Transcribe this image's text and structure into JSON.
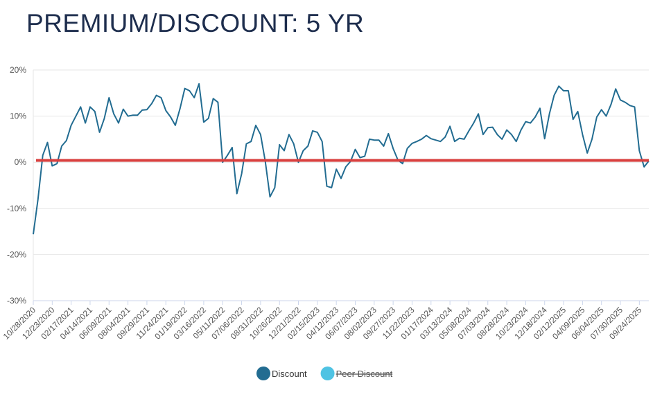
{
  "chart_data": {
    "type": "line",
    "title": "PREMIUM/DISCOUNT: 5 YR",
    "categories": [
      "10/28/2020",
      null,
      null,
      null,
      "12/23/2020",
      null,
      null,
      null,
      "02/17/2021",
      null,
      null,
      null,
      "04/14/2021",
      null,
      null,
      null,
      "06/09/2021",
      null,
      null,
      null,
      "08/04/2021",
      null,
      null,
      null,
      "09/29/2021",
      null,
      null,
      null,
      "11/24/2021",
      null,
      null,
      null,
      "01/19/2022",
      null,
      null,
      null,
      "03/16/2022",
      null,
      null,
      null,
      "05/11/2022",
      null,
      null,
      null,
      "07/06/2022",
      null,
      null,
      null,
      "08/31/2022",
      null,
      null,
      null,
      "10/26/2022",
      null,
      null,
      null,
      "12/21/2022",
      null,
      null,
      null,
      "02/15/2023",
      null,
      null,
      null,
      "04/12/2023",
      null,
      null,
      null,
      "06/07/2023",
      null,
      null,
      null,
      "08/02/2023",
      null,
      null,
      null,
      "09/27/2023",
      null,
      null,
      null,
      "11/22/2023",
      null,
      null,
      null,
      "01/17/2024",
      null,
      null,
      null,
      "03/13/2024",
      null,
      null,
      null,
      "05/08/2024",
      null,
      null,
      null,
      "07/03/2024",
      null,
      null,
      null,
      "08/28/2024",
      null,
      null,
      null,
      "10/23/2024",
      null,
      null,
      null,
      "12/18/2024",
      null,
      null,
      null,
      "02/12/2025",
      null,
      null,
      null,
      "04/09/2025",
      null,
      null,
      null,
      "06/04/2025",
      null,
      null,
      null,
      "07/30/2025",
      null,
      null,
      null,
      "09/24/2025",
      null,
      null
    ],
    "series": [
      {
        "name": "Discount",
        "color": "#226c91",
        "values": [
          -15.6,
          -8,
          1.5,
          4.3,
          -0.8,
          -0.3,
          3.5,
          4.7,
          8,
          10,
          12,
          8.5,
          12,
          11,
          6.5,
          9.5,
          14,
          10.5,
          8.5,
          11.5,
          10,
          10.2,
          10.2,
          11.3,
          11.4,
          12.7,
          14.5,
          14,
          11.2,
          9.8,
          8,
          11.7,
          16,
          15.5,
          14,
          17,
          8.7,
          9.5,
          13.8,
          13,
          0,
          1.5,
          3.2,
          -6.8,
          -2.5,
          4,
          4.5,
          8,
          6,
          0.2,
          -7.5,
          -5.5,
          3.8,
          2.5,
          6,
          4,
          0,
          2.5,
          3.5,
          6.8,
          6.5,
          4.5,
          -5.2,
          -5.5,
          -1.5,
          -3.5,
          -1,
          0.2,
          2.8,
          1,
          1.3,
          5,
          4.8,
          4.8,
          3.5,
          6.2,
          3,
          0.5,
          -0.3,
          3,
          4.1,
          4.5,
          5,
          5.8,
          5.1,
          4.8,
          4.5,
          5.5,
          7.8,
          4.5,
          5.2,
          5,
          6.8,
          8.5,
          10.5,
          6,
          7.5,
          7.6,
          6,
          5,
          7,
          6,
          4.5,
          7,
          8.8,
          8.5,
          9.8,
          11.7,
          5.1,
          10.5,
          14.5,
          16.5,
          15.5,
          15.5,
          9.3,
          11,
          6,
          2,
          5,
          9.8,
          11.4,
          10,
          12.5,
          15.9,
          13.5,
          13,
          12.3,
          12,
          2.5,
          -1,
          0.3
        ]
      },
      {
        "name": "Peer Discount",
        "color": "#4fc3e3",
        "hidden": true
      }
    ],
    "reference_line": {
      "value": 0.4,
      "color": "#d9403f"
    },
    "ylim": [
      -30,
      20
    ],
    "yticks": [
      {
        "value": -30,
        "label": "-30%"
      },
      {
        "value": -20,
        "label": "-20%"
      },
      {
        "value": -10,
        "label": "-10%"
      },
      {
        "value": 0,
        "label": "0%"
      },
      {
        "value": 10,
        "label": "10%"
      },
      {
        "value": 20,
        "label": "20%"
      }
    ],
    "grid": true,
    "legend": "bottom"
  }
}
